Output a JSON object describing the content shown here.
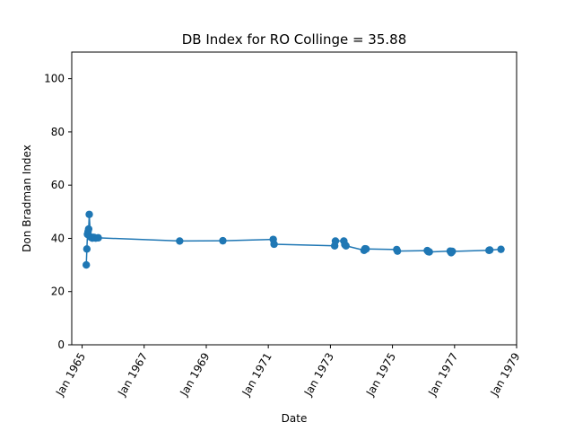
{
  "chart_data": {
    "type": "line",
    "title": "DB Index for RO Collinge = 35.88",
    "xlabel": "Date",
    "ylabel": "Don Bradman Index",
    "xlim": [
      "1964-09-01",
      "1979-01-01"
    ],
    "ylim": [
      0,
      110
    ],
    "x_ticks": [
      {
        "date": "1965-01-01",
        "label": "Jan 1965"
      },
      {
        "date": "1967-01-01",
        "label": "Jan 1967"
      },
      {
        "date": "1969-01-01",
        "label": "Jan 1969"
      },
      {
        "date": "1971-01-01",
        "label": "Jan 1971"
      },
      {
        "date": "1973-01-01",
        "label": "Jan 1973"
      },
      {
        "date": "1975-01-01",
        "label": "Jan 1975"
      },
      {
        "date": "1977-01-01",
        "label": "Jan 1977"
      },
      {
        "date": "1979-01-01",
        "label": "Jan 1979"
      }
    ],
    "y_ticks": [
      0,
      20,
      40,
      60,
      80,
      100
    ],
    "grid": false,
    "legend": "none",
    "series": [
      {
        "color": "#1f77b4",
        "marker": "circle",
        "x": [
          "1965-02-19",
          "1965-02-26",
          "1965-03-05",
          "1965-03-12",
          "1965-03-19",
          "1965-03-26",
          "1965-04-09",
          "1965-04-20",
          "1965-05-01",
          "1965-05-12",
          "1965-05-25",
          "1965-06-10",
          "1965-07-10",
          "1968-02-23",
          "1969-07-15",
          "1971-02-28",
          "1971-03-10",
          "1973-02-20",
          "1973-03-01",
          "1973-06-08",
          "1973-06-20",
          "1973-07-03",
          "1974-02-01",
          "1974-02-12",
          "1974-02-25",
          "1975-02-20",
          "1975-03-01",
          "1976-02-15",
          "1976-02-27",
          "1976-03-10",
          "1976-11-10",
          "1976-11-22",
          "1976-12-05",
          "1978-02-10",
          "1978-02-20",
          "1978-07-01"
        ],
        "values": [
          30.0,
          36.0,
          41.5,
          42.5,
          43.5,
          49.0,
          40.5,
          40.3,
          40.1,
          40.4,
          40.3,
          40.1,
          40.2,
          39.0,
          39.1,
          39.6,
          37.8,
          37.2,
          39.0,
          39.0,
          37.6,
          37.2,
          35.5,
          36.1,
          36.0,
          35.8,
          35.2,
          35.4,
          35.0,
          34.9,
          35.2,
          34.6,
          35.1,
          35.5,
          35.6,
          35.88
        ]
      }
    ]
  }
}
